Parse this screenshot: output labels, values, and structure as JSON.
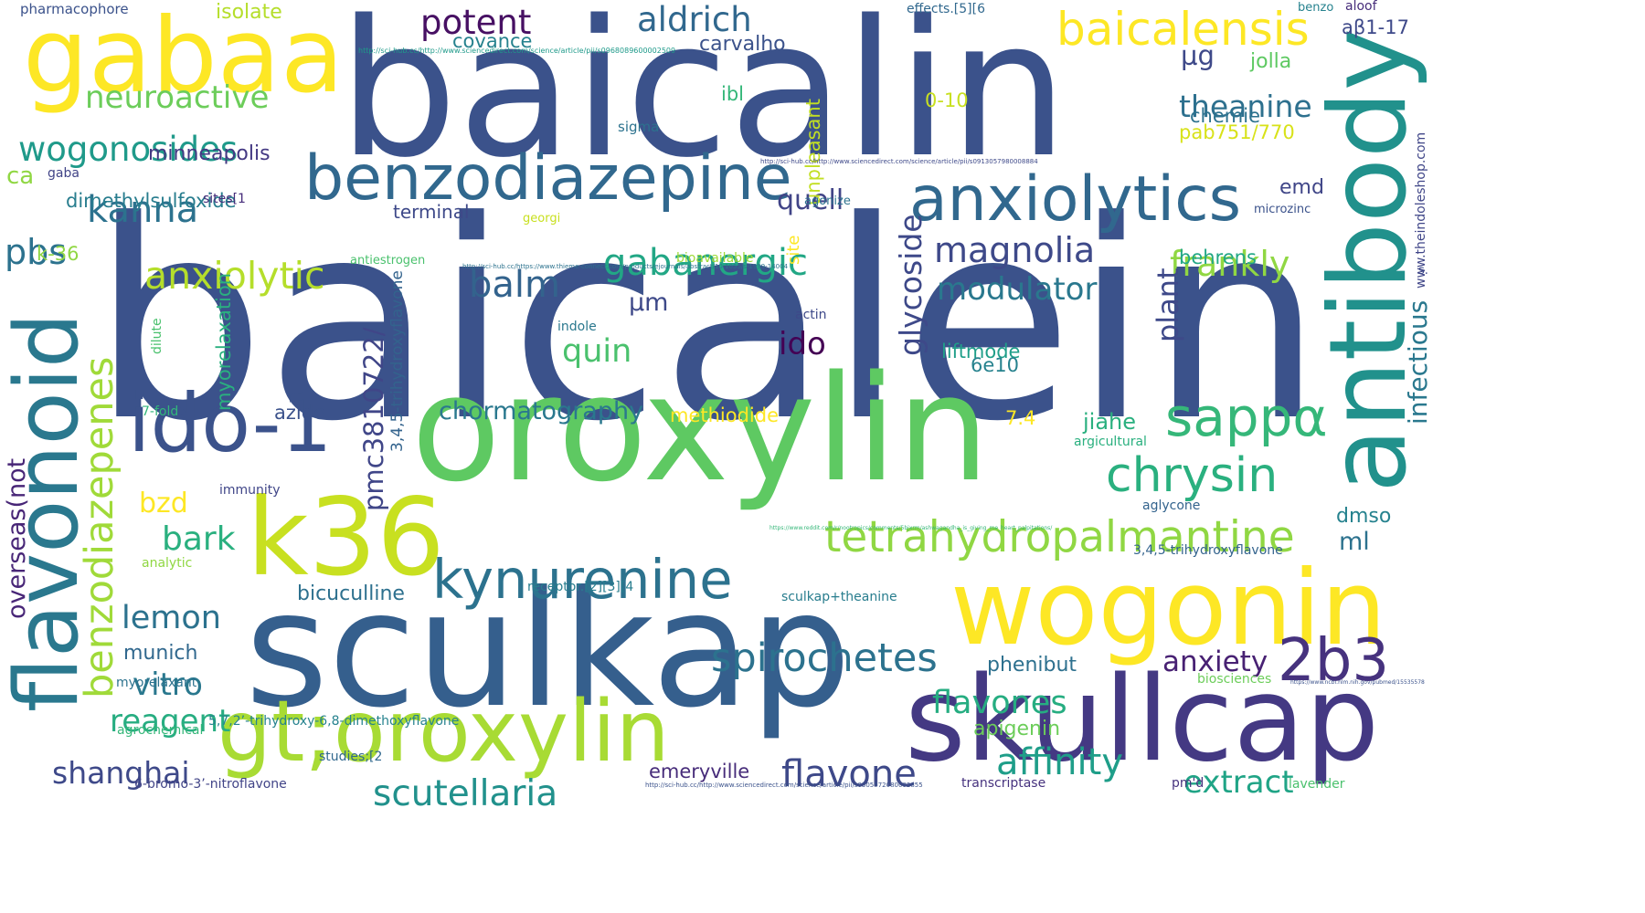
{
  "words": [
    {
      "text": "baicalein",
      "color": "#3b528b"
    },
    {
      "text": "baicalin",
      "color": "#3b528b"
    },
    {
      "text": "oroxylin",
      "color": "#5ec962"
    },
    {
      "text": "sculkap",
      "color": "#355f8d"
    },
    {
      "text": "skullcap",
      "color": "#443983"
    },
    {
      "text": "antibody",
      "color": "#21918c"
    },
    {
      "text": "wogonin",
      "color": "#fde725"
    },
    {
      "text": "gabaa",
      "color": "#fde725"
    },
    {
      "text": "k36",
      "color": "#c8e020"
    },
    {
      "text": "gt;oroxylin",
      "color": "#a8db34"
    },
    {
      "text": "ido-1",
      "color": "#3b528b"
    },
    {
      "text": "flavonoid",
      "color": "#2a788e"
    },
    {
      "text": "benzodiazepine",
      "color": "#31688e"
    },
    {
      "text": "anxiolytics",
      "color": "#31688e"
    },
    {
      "text": "kynurenine",
      "color": "#2c728e"
    },
    {
      "text": "tetrahydropalmantine",
      "color": "#90d743"
    },
    {
      "text": "benzodiazepenes",
      "color": "#a0da39"
    },
    {
      "text": "sappα",
      "color": "#35b779"
    },
    {
      "text": "chrysin",
      "color": "#2ab07f"
    },
    {
      "text": "2b3",
      "color": "#46327e"
    },
    {
      "text": "baicalensis",
      "color": "#fde725"
    },
    {
      "text": "spirochetes",
      "color": "#2c728e"
    },
    {
      "text": "scutellaria",
      "color": "#21918c"
    },
    {
      "text": "flavone",
      "color": "#3e4989"
    },
    {
      "text": "affinity",
      "color": "#1f9e89"
    },
    {
      "text": "extract",
      "color": "#20a486"
    },
    {
      "text": "flavones",
      "color": "#26ad81"
    },
    {
      "text": "anxiety",
      "color": "#482173"
    },
    {
      "text": "gabanergic",
      "color": "#22a785"
    },
    {
      "text": "anxiolytic",
      "color": "#b5de2b"
    },
    {
      "text": "kanna",
      "color": "#2c728e"
    },
    {
      "text": "balm",
      "color": "#33638d"
    },
    {
      "text": "magnolia",
      "color": "#3e4989"
    },
    {
      "text": "modulator",
      "color": "#2a788e"
    },
    {
      "text": "frankly",
      "color": "#90d743"
    },
    {
      "text": "potent",
      "color": "#471063"
    },
    {
      "text": "aldrich",
      "color": "#31688e"
    },
    {
      "text": "theanine",
      "color": "#2d708e"
    },
    {
      "text": "wogonosides",
      "color": "#1f9a8a"
    },
    {
      "text": "neuroactive",
      "color": "#6ccd5a"
    },
    {
      "text": "shanghai",
      "color": "#3e4989"
    },
    {
      "text": "lemon",
      "color": "#2c728e"
    },
    {
      "text": "vitro",
      "color": "#2a788e"
    },
    {
      "text": "reagent",
      "color": "#27ad81"
    },
    {
      "text": "quin",
      "color": "#4ac16d"
    },
    {
      "text": "quell",
      "color": "#414487"
    },
    {
      "text": "glycoside",
      "color": "#3e4989"
    },
    {
      "text": "pmc3810722/",
      "color": "#404688"
    },
    {
      "text": "overseas(not",
      "color": "#482677"
    },
    {
      "text": "infectious",
      "color": "#2a788e"
    },
    {
      "text": "plant",
      "color": "#3e4989"
    },
    {
      "text": "pbs",
      "color": "#2c728e"
    },
    {
      "text": "bark",
      "color": "#2ab07f"
    },
    {
      "text": "bzd",
      "color": "#fde725"
    },
    {
      "text": "ido",
      "color": "#440154"
    },
    {
      "text": "µm",
      "color": "#3e4989"
    },
    {
      "text": "µg",
      "color": "#3e4989"
    },
    {
      "text": "ml",
      "color": "#2c728e"
    },
    {
      "text": "dmso",
      "color": "#26828e"
    },
    {
      "text": "chormatography",
      "color": "#2a788e"
    },
    {
      "text": "bicuculline",
      "color": "#2d708e"
    },
    {
      "text": "munich",
      "color": "#31688e"
    },
    {
      "text": "azide",
      "color": "#3b528b"
    },
    {
      "text": "minneapolis",
      "color": "#443983"
    },
    {
      "text": "dimethylsulfoxide",
      "color": "#287d8e"
    },
    {
      "text": "jiahe",
      "color": "#2ab07f"
    },
    {
      "text": "phenibut",
      "color": "#2d708e"
    },
    {
      "text": "apigenin",
      "color": "#6ccd5a"
    },
    {
      "text": "emeryville",
      "color": "#472c7a"
    },
    {
      "text": "covance",
      "color": "#26828e"
    },
    {
      "text": "carvalho",
      "color": "#3b528b"
    },
    {
      "text": "jolla",
      "color": "#5ec962"
    },
    {
      "text": "chemie",
      "color": "#2c728e"
    },
    {
      "text": "behrens",
      "color": "#22a785"
    },
    {
      "text": "emd",
      "color": "#404688"
    },
    {
      "text": "unpleasant",
      "color": "#c2df23"
    },
    {
      "text": "myorelaxation",
      "color": "#2ab07f"
    },
    {
      "text": "3,4,5-trihydroxyflavone",
      "color": "#33638d"
    },
    {
      "text": "liftmode",
      "color": "#1f9e89"
    },
    {
      "text": "methiodide",
      "color": "#fde725"
    },
    {
      "text": "isolate",
      "color": "#b5de2b"
    },
    {
      "text": "pab751/770",
      "color": "#d8e219"
    },
    {
      "text": "aβ1-17",
      "color": "#3e4989"
    },
    {
      "text": "k-36",
      "color": "#90d743"
    },
    {
      "text": "ca",
      "color": "#90d743"
    },
    {
      "text": "ibl",
      "color": "#35b779"
    },
    {
      "text": "0-10",
      "color": "#c8e020"
    },
    {
      "text": "6e10",
      "color": "#26828e"
    },
    {
      "text": "7.4",
      "color": "#fde725"
    },
    {
      "text": "terminal",
      "color": "#3e4989"
    },
    {
      "text": "site",
      "color": "#fde725"
    },
    {
      "text": "pharmacophore",
      "color": "#3b528b"
    },
    {
      "text": "effects.[5][6",
      "color": "#31688e"
    },
    {
      "text": "benzo",
      "color": "#26828e"
    },
    {
      "text": "aloof",
      "color": "#472d7b"
    },
    {
      "text": "sigma",
      "color": "#2c728e"
    },
    {
      "text": "microzinc",
      "color": "#3b528b"
    },
    {
      "text": "georgi",
      "color": "#c8e020"
    },
    {
      "text": "agonize",
      "color": "#2c728e"
    },
    {
      "text": "bioavailable",
      "color": "#a0da39"
    },
    {
      "text": "antiestrogen",
      "color": "#4ac16d"
    },
    {
      "text": "sites[1",
      "color": "#472d7b"
    },
    {
      "text": "gaba",
      "color": "#414487"
    },
    {
      "text": "actin",
      "color": "#3e4989"
    },
    {
      "text": "indole",
      "color": "#2a788e"
    },
    {
      "text": "dilute",
      "color": "#4ac16d"
    },
    {
      "text": "7-fold",
      "color": "#32b67a"
    },
    {
      "text": "immunity",
      "color": "#404688"
    },
    {
      "text": "analytic",
      "color": "#90d743"
    },
    {
      "text": "myorelaxant",
      "color": "#2c728e"
    },
    {
      "text": "agrochemical",
      "color": "#35b779"
    },
    {
      "text": "studies;[2",
      "color": "#31688e"
    },
    {
      "text": "6-bromo-3’-nitroflavone",
      "color": "#414487"
    },
    {
      "text": "5,7,2’-trihydroxy-6,8-dimethoxyflavone",
      "color": "#26828e"
    },
    {
      "text": "receptor.[2][3][4",
      "color": "#287d8e"
    },
    {
      "text": "aglycone",
      "color": "#33638d"
    },
    {
      "text": "argicultural",
      "color": "#2ab07f"
    },
    {
      "text": "3,4,5-trihydroxyflavone",
      "color": "#33638d"
    },
    {
      "text": "sculkap+theanine",
      "color": "#287d8e"
    },
    {
      "text": "biosciences",
      "color": "#6ccd5a"
    },
    {
      "text": "transcriptase",
      "color": "#46327e"
    },
    {
      "text": "pm'd",
      "color": "#46327e"
    },
    {
      "text": "lavender",
      "color": "#4ac16d"
    },
    {
      "text": "www.theindoleshop.com",
      "color": "#404688"
    },
    {
      "text": "s.",
      "color": "#3e4989"
    },
    {
      "text": "http://sci-hub.cc/http://www.sciencedirect.com/science/article/pii/s0968089600002509",
      "color": "#1f9a8a"
    },
    {
      "text": "http://sci-hub.cc/http://www.sciencedirect.com/science/article/pii/s0913057980008884",
      "color": "#3e4989"
    },
    {
      "text": "http://sci-hub.cc/https://www.thieme-connect.com/products/ejournals/abstract/10.1055/s-1999-14004",
      "color": "#2c728e"
    },
    {
      "text": "http://sci-hub.cc/http://www.sciencedirect.com/science/article/pii/s0305572080002855",
      "color": "#3b528b"
    },
    {
      "text": "https://www.reddit.com/r/nootropics/comments/5bjxrm/ashwagandha_is_giving_me_heart_palpitations/",
      "color": "#35b779"
    },
    {
      "text": "https://www.ncbi.nlm.nih.gov/pubmed/15535578",
      "color": "#3b528b"
    }
  ]
}
